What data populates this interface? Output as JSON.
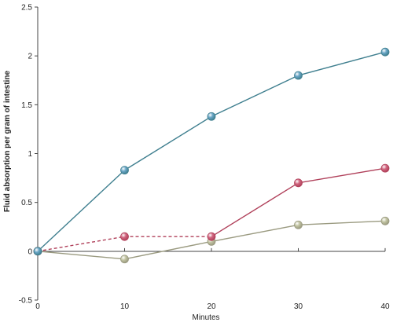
{
  "chart_data": {
    "type": "line",
    "title": "",
    "xlabel": "Minutes",
    "ylabel": "Fluid absorption per gram of intestine",
    "xlim": [
      0,
      40
    ],
    "ylim": [
      -0.5,
      2.5
    ],
    "x_ticks": [
      0,
      10,
      20,
      30,
      40
    ],
    "y_ticks": [
      -0.5,
      0,
      0.5,
      1,
      1.5,
      2,
      2.5
    ],
    "x_tick_labels": [
      "0",
      "10",
      "20",
      "30",
      "40"
    ],
    "y_tick_labels": [
      "-0.5",
      "0",
      "0.5",
      "1",
      "1.5",
      "2",
      "2.5"
    ],
    "grid": false,
    "legend": "none",
    "series": [
      {
        "color": "#3f7f8f",
        "marker_color": "#6aa6c6",
        "x": [
          0,
          10,
          20,
          30,
          40
        ],
        "y": [
          0,
          0.83,
          1.38,
          1.8,
          2.04
        ],
        "dashed_segments": []
      },
      {
        "color": "#b0405a",
        "marker_color": "#d16680",
        "x": [
          0,
          10,
          20,
          30,
          40
        ],
        "y": [
          0,
          0.15,
          0.15,
          0.7,
          0.85
        ],
        "dashed_segments": [
          0,
          1
        ]
      },
      {
        "color": "#9a9a80",
        "marker_color": "#c2c4a2",
        "x": [
          0,
          10,
          20,
          30,
          40
        ],
        "y": [
          0,
          -0.08,
          0.1,
          0.27,
          0.31
        ],
        "dashed_segments": []
      }
    ]
  }
}
